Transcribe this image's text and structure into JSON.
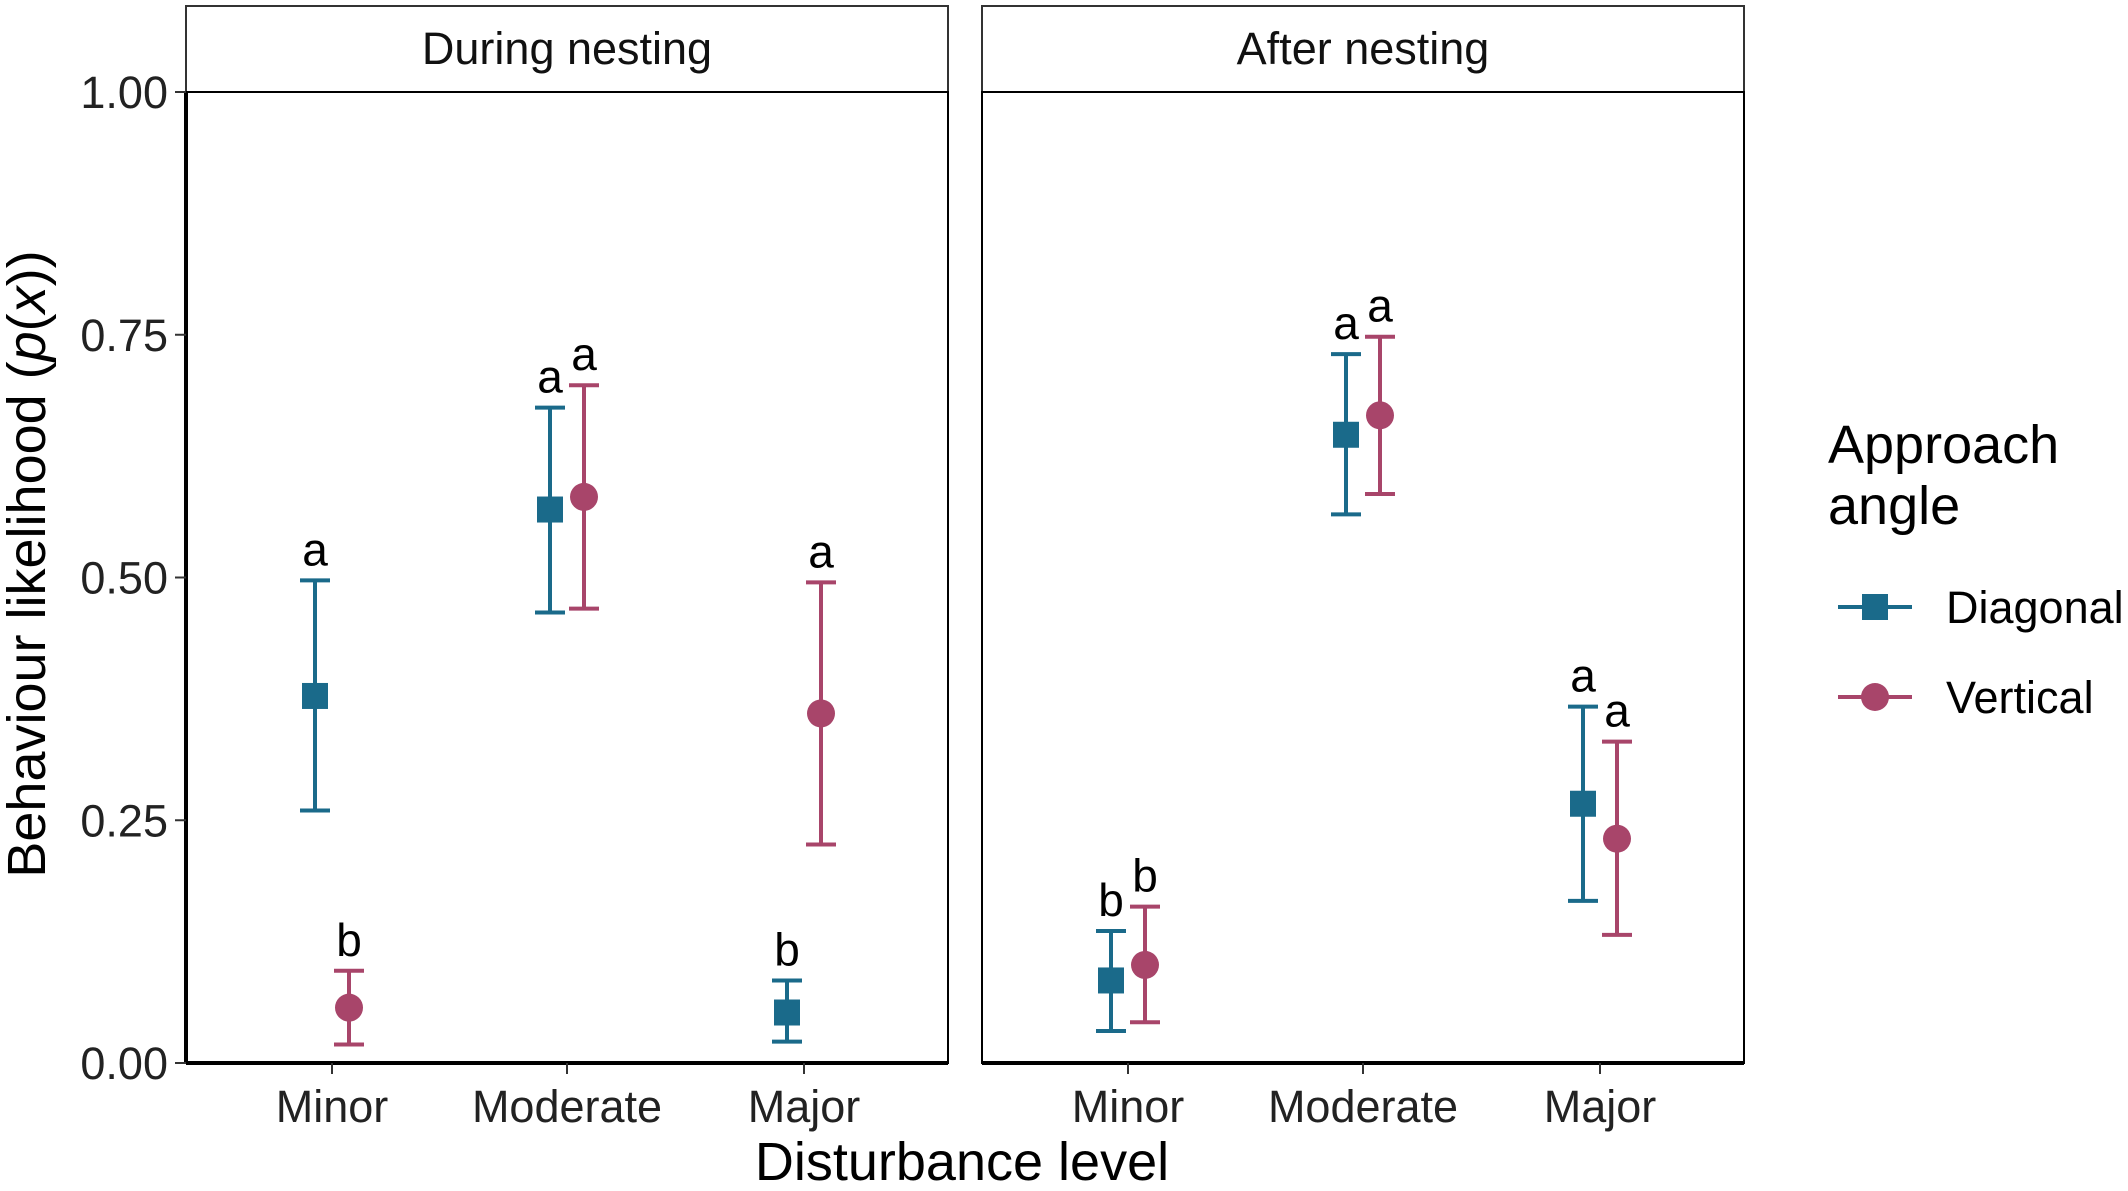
{
  "chart_data": {
    "type": "scatter",
    "subtype": "point-range with error bars, faceted",
    "xlabel": "Disturbance level",
    "ylabel_prefix": "Behaviour likelihood (",
    "ylabel_italic_p": "p",
    "ylabel_open": "(",
    "ylabel_italic_x": "x",
    "ylabel_close": "))",
    "ylim": [
      0,
      1
    ],
    "y_ticks": [
      0.0,
      0.25,
      0.5,
      0.75,
      1.0
    ],
    "y_tick_labels": [
      "0.00",
      "0.25",
      "0.50",
      "0.75",
      "1.00"
    ],
    "categories": [
      "Minor",
      "Moderate",
      "Major"
    ],
    "grid": false,
    "legend": {
      "title_line1": "Approach",
      "title_line2": "angle",
      "position": "right",
      "entries": [
        {
          "name": "Diagonal",
          "color": "#1a6a8a",
          "marker": "square"
        },
        {
          "name": "Vertical",
          "color": "#a8456a",
          "marker": "circle"
        }
      ]
    },
    "facets": [
      {
        "title": "During nesting",
        "series": [
          {
            "name": "Diagonal",
            "points": [
              {
                "category": "Minor",
                "y": 0.378,
                "lower": 0.26,
                "upper": 0.497,
                "letter": "a"
              },
              {
                "category": "Moderate",
                "y": 0.57,
                "lower": 0.464,
                "upper": 0.675,
                "letter": "a"
              },
              {
                "category": "Major",
                "y": 0.052,
                "lower": 0.022,
                "upper": 0.085,
                "letter": "b"
              }
            ]
          },
          {
            "name": "Vertical",
            "points": [
              {
                "category": "Minor",
                "y": 0.057,
                "lower": 0.019,
                "upper": 0.095,
                "letter": "b"
              },
              {
                "category": "Moderate",
                "y": 0.583,
                "lower": 0.468,
                "upper": 0.698,
                "letter": "a"
              },
              {
                "category": "Major",
                "y": 0.36,
                "lower": 0.225,
                "upper": 0.495,
                "letter": "a"
              }
            ]
          }
        ]
      },
      {
        "title": "After nesting",
        "series": [
          {
            "name": "Diagonal",
            "points": [
              {
                "category": "Minor",
                "y": 0.085,
                "lower": 0.033,
                "upper": 0.136,
                "letter": "b"
              },
              {
                "category": "Moderate",
                "y": 0.647,
                "lower": 0.565,
                "upper": 0.73,
                "letter": "a"
              },
              {
                "category": "Major",
                "y": 0.267,
                "lower": 0.167,
                "upper": 0.367,
                "letter": "a"
              }
            ]
          },
          {
            "name": "Vertical",
            "points": [
              {
                "category": "Minor",
                "y": 0.101,
                "lower": 0.042,
                "upper": 0.161,
                "letter": "b"
              },
              {
                "category": "Moderate",
                "y": 0.667,
                "lower": 0.586,
                "upper": 0.748,
                "letter": "a"
              },
              {
                "category": "Major",
                "y": 0.231,
                "lower": 0.132,
                "upper": 0.331,
                "letter": "a"
              }
            ]
          }
        ]
      }
    ]
  }
}
